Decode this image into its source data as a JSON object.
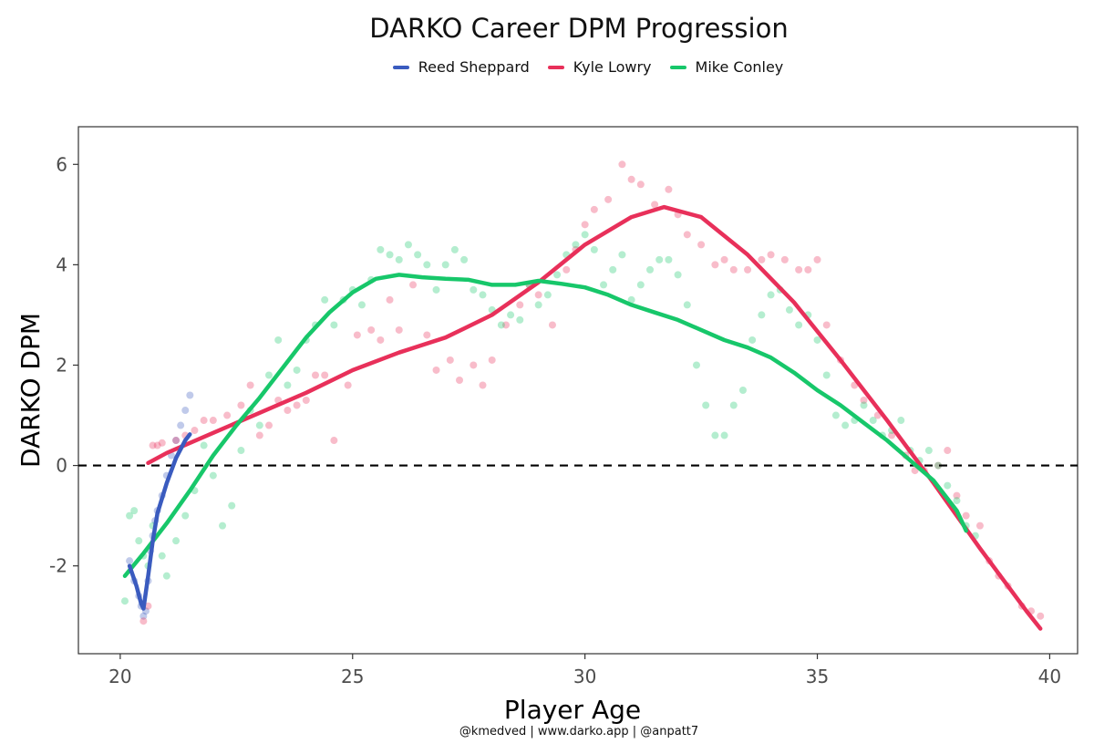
{
  "chart_data": {
    "type": "scatter",
    "title": "DARKO Career DPM Progression",
    "xlabel": "Player Age",
    "ylabel": "DARKO DPM",
    "xlim": [
      19.1,
      40.6
    ],
    "ylim": [
      -3.75,
      6.75
    ],
    "x_ticks": [
      20,
      25,
      30,
      35,
      40
    ],
    "y_ticks": [
      -2,
      0,
      2,
      4,
      6
    ],
    "y_tick_labels": [
      "-2",
      "0",
      "2",
      "4",
      "6"
    ],
    "reference_line": {
      "y": 0,
      "style": "dashed"
    },
    "grid": false,
    "legend_position": "top",
    "caption": "@kmedved | www.darko.app | @anpatt7",
    "series": [
      {
        "name": "Reed Sheppard",
        "color": "#3a5bbf",
        "points": [
          [
            20.2,
            -1.9
          ],
          [
            20.3,
            -2.3
          ],
          [
            20.4,
            -2.6
          ],
          [
            20.45,
            -2.8
          ],
          [
            20.5,
            -3.0
          ],
          [
            20.55,
            -2.9
          ],
          [
            20.6,
            -2.3
          ],
          [
            20.65,
            -1.7
          ],
          [
            20.7,
            -1.4
          ],
          [
            20.75,
            -1.1
          ],
          [
            20.8,
            -0.9
          ],
          [
            20.9,
            -0.6
          ],
          [
            21.0,
            -0.2
          ],
          [
            21.1,
            0.2
          ],
          [
            21.2,
            0.5
          ],
          [
            21.3,
            0.8
          ],
          [
            21.4,
            1.1
          ],
          [
            21.5,
            1.4
          ]
        ],
        "trend": [
          [
            20.2,
            -2.0
          ],
          [
            20.35,
            -2.4
          ],
          [
            20.45,
            -2.75
          ],
          [
            20.5,
            -2.85
          ],
          [
            20.6,
            -2.2
          ],
          [
            20.7,
            -1.5
          ],
          [
            20.8,
            -0.95
          ],
          [
            21.0,
            -0.35
          ],
          [
            21.2,
            0.15
          ],
          [
            21.4,
            0.5
          ],
          [
            21.5,
            0.62
          ]
        ]
      },
      {
        "name": "Kyle Lowry",
        "color": "#e8305a",
        "points": [
          [
            20.5,
            -3.1
          ],
          [
            20.6,
            -2.8
          ],
          [
            20.7,
            0.4
          ],
          [
            20.8,
            0.4
          ],
          [
            20.9,
            0.45
          ],
          [
            21.2,
            0.5
          ],
          [
            21.4,
            0.6
          ],
          [
            21.6,
            0.7
          ],
          [
            21.8,
            0.9
          ],
          [
            22.0,
            0.9
          ],
          [
            22.3,
            1.0
          ],
          [
            22.6,
            1.2
          ],
          [
            22.8,
            1.6
          ],
          [
            23.0,
            0.6
          ],
          [
            23.2,
            0.8
          ],
          [
            23.4,
            1.3
          ],
          [
            23.6,
            1.1
          ],
          [
            23.8,
            1.2
          ],
          [
            24.0,
            1.3
          ],
          [
            24.2,
            1.8
          ],
          [
            24.4,
            1.8
          ],
          [
            24.6,
            0.5
          ],
          [
            24.9,
            1.6
          ],
          [
            25.1,
            2.6
          ],
          [
            25.4,
            2.7
          ],
          [
            25.6,
            2.5
          ],
          [
            25.8,
            3.3
          ],
          [
            26.0,
            2.7
          ],
          [
            26.3,
            3.6
          ],
          [
            26.6,
            2.6
          ],
          [
            26.8,
            1.9
          ],
          [
            27.1,
            2.1
          ],
          [
            27.3,
            1.7
          ],
          [
            27.6,
            2.0
          ],
          [
            27.8,
            1.6
          ],
          [
            28.0,
            2.1
          ],
          [
            28.3,
            2.8
          ],
          [
            28.6,
            3.2
          ],
          [
            28.8,
            3.6
          ],
          [
            29.0,
            3.4
          ],
          [
            29.3,
            2.8
          ],
          [
            29.6,
            3.9
          ],
          [
            29.8,
            4.3
          ],
          [
            30.0,
            4.8
          ],
          [
            30.2,
            5.1
          ],
          [
            30.5,
            5.3
          ],
          [
            30.8,
            6.0
          ],
          [
            31.0,
            5.7
          ],
          [
            31.2,
            5.6
          ],
          [
            31.5,
            5.2
          ],
          [
            31.8,
            5.5
          ],
          [
            32.0,
            5.0
          ],
          [
            32.2,
            4.6
          ],
          [
            32.5,
            4.4
          ],
          [
            32.8,
            4.0
          ],
          [
            33.0,
            4.1
          ],
          [
            33.2,
            3.9
          ],
          [
            33.5,
            3.9
          ],
          [
            33.8,
            4.1
          ],
          [
            34.0,
            4.2
          ],
          [
            34.3,
            4.1
          ],
          [
            34.6,
            3.9
          ],
          [
            34.8,
            3.9
          ],
          [
            35.0,
            4.1
          ],
          [
            35.2,
            2.8
          ],
          [
            35.5,
            2.1
          ],
          [
            35.8,
            1.6
          ],
          [
            36.0,
            1.3
          ],
          [
            36.3,
            1.0
          ],
          [
            36.6,
            0.6
          ],
          [
            36.9,
            0.2
          ],
          [
            37.1,
            -0.1
          ],
          [
            37.3,
            -0.1
          ],
          [
            37.6,
            0.0
          ],
          [
            37.8,
            0.3
          ],
          [
            38.0,
            -0.6
          ],
          [
            38.2,
            -1.0
          ],
          [
            38.5,
            -1.2
          ],
          [
            38.7,
            -1.9
          ],
          [
            38.9,
            -2.2
          ],
          [
            39.1,
            -2.4
          ],
          [
            39.4,
            -2.8
          ],
          [
            39.6,
            -2.9
          ],
          [
            39.8,
            -3.0
          ]
        ],
        "trend": [
          [
            20.6,
            0.05
          ],
          [
            21.0,
            0.25
          ],
          [
            22.0,
            0.65
          ],
          [
            23.0,
            1.05
          ],
          [
            24.0,
            1.45
          ],
          [
            25.0,
            1.9
          ],
          [
            26.0,
            2.25
          ],
          [
            27.0,
            2.55
          ],
          [
            28.0,
            3.0
          ],
          [
            29.0,
            3.65
          ],
          [
            30.0,
            4.4
          ],
          [
            31.0,
            4.95
          ],
          [
            31.7,
            5.15
          ],
          [
            32.5,
            4.95
          ],
          [
            33.5,
            4.2
          ],
          [
            34.5,
            3.25
          ],
          [
            35.5,
            2.1
          ],
          [
            36.5,
            0.9
          ],
          [
            37.5,
            -0.35
          ],
          [
            38.5,
            -1.65
          ],
          [
            39.5,
            -2.9
          ],
          [
            39.8,
            -3.25
          ]
        ]
      },
      {
        "name": "Mike Conley",
        "color": "#17c76a",
        "points": [
          [
            20.1,
            -2.7
          ],
          [
            20.2,
            -1.0
          ],
          [
            20.3,
            -0.9
          ],
          [
            20.4,
            -1.5
          ],
          [
            20.5,
            -1.8
          ],
          [
            20.6,
            -2.0
          ],
          [
            20.7,
            -1.2
          ],
          [
            20.9,
            -1.8
          ],
          [
            21.0,
            -2.2
          ],
          [
            21.2,
            -1.5
          ],
          [
            21.4,
            -1.0
          ],
          [
            21.6,
            -0.5
          ],
          [
            21.8,
            0.4
          ],
          [
            22.0,
            -0.2
          ],
          [
            22.2,
            -1.2
          ],
          [
            22.4,
            -0.8
          ],
          [
            22.6,
            0.3
          ],
          [
            22.8,
            1.1
          ],
          [
            23.0,
            0.8
          ],
          [
            23.2,
            1.8
          ],
          [
            23.4,
            2.5
          ],
          [
            23.6,
            1.6
          ],
          [
            23.8,
            1.9
          ],
          [
            24.0,
            2.5
          ],
          [
            24.2,
            2.8
          ],
          [
            24.4,
            3.3
          ],
          [
            24.6,
            2.8
          ],
          [
            24.8,
            3.3
          ],
          [
            25.0,
            3.5
          ],
          [
            25.2,
            3.2
          ],
          [
            25.4,
            3.7
          ],
          [
            25.6,
            4.3
          ],
          [
            25.8,
            4.2
          ],
          [
            26.0,
            4.1
          ],
          [
            26.2,
            4.4
          ],
          [
            26.4,
            4.2
          ],
          [
            26.6,
            4.0
          ],
          [
            26.8,
            3.5
          ],
          [
            27.0,
            4.0
          ],
          [
            27.2,
            4.3
          ],
          [
            27.4,
            4.1
          ],
          [
            27.6,
            3.5
          ],
          [
            27.8,
            3.4
          ],
          [
            28.0,
            3.1
          ],
          [
            28.2,
            2.8
          ],
          [
            28.4,
            3.0
          ],
          [
            28.6,
            2.9
          ],
          [
            28.8,
            3.6
          ],
          [
            29.0,
            3.2
          ],
          [
            29.2,
            3.4
          ],
          [
            29.4,
            3.8
          ],
          [
            29.6,
            4.2
          ],
          [
            29.8,
            4.4
          ],
          [
            30.0,
            4.6
          ],
          [
            30.2,
            4.3
          ],
          [
            30.4,
            3.6
          ],
          [
            30.6,
            3.9
          ],
          [
            30.8,
            4.2
          ],
          [
            31.0,
            3.3
          ],
          [
            31.2,
            3.6
          ],
          [
            31.4,
            3.9
          ],
          [
            31.6,
            4.1
          ],
          [
            31.8,
            4.1
          ],
          [
            32.0,
            3.8
          ],
          [
            32.2,
            3.2
          ],
          [
            32.4,
            2.0
          ],
          [
            32.6,
            1.2
          ],
          [
            32.8,
            0.6
          ],
          [
            33.0,
            0.6
          ],
          [
            33.2,
            1.2
          ],
          [
            33.4,
            1.5
          ],
          [
            33.6,
            2.5
          ],
          [
            33.8,
            3.0
          ],
          [
            34.0,
            3.4
          ],
          [
            34.2,
            3.5
          ],
          [
            34.4,
            3.1
          ],
          [
            34.6,
            2.8
          ],
          [
            34.8,
            3.0
          ],
          [
            35.0,
            2.5
          ],
          [
            35.2,
            1.8
          ],
          [
            35.4,
            1.0
          ],
          [
            35.6,
            0.8
          ],
          [
            35.8,
            0.9
          ],
          [
            36.0,
            1.2
          ],
          [
            36.2,
            0.9
          ],
          [
            36.4,
            0.6
          ],
          [
            36.6,
            0.7
          ],
          [
            36.8,
            0.9
          ],
          [
            37.0,
            0.3
          ],
          [
            37.2,
            0.1
          ],
          [
            37.4,
            0.3
          ],
          [
            37.6,
            0.0
          ],
          [
            37.8,
            -0.4
          ],
          [
            38.0,
            -0.7
          ],
          [
            38.2,
            -1.2
          ],
          [
            38.4,
            -1.4
          ]
        ],
        "trend": [
          [
            20.1,
            -2.2
          ],
          [
            20.5,
            -1.75
          ],
          [
            21.0,
            -1.15
          ],
          [
            21.5,
            -0.5
          ],
          [
            22.0,
            0.2
          ],
          [
            22.5,
            0.8
          ],
          [
            23.0,
            1.35
          ],
          [
            23.5,
            1.95
          ],
          [
            24.0,
            2.55
          ],
          [
            24.5,
            3.05
          ],
          [
            25.0,
            3.45
          ],
          [
            25.5,
            3.72
          ],
          [
            26.0,
            3.8
          ],
          [
            26.5,
            3.75
          ],
          [
            27.0,
            3.72
          ],
          [
            27.5,
            3.7
          ],
          [
            28.0,
            3.6
          ],
          [
            28.5,
            3.6
          ],
          [
            29.0,
            3.68
          ],
          [
            29.5,
            3.62
          ],
          [
            30.0,
            3.55
          ],
          [
            30.5,
            3.4
          ],
          [
            31.0,
            3.2
          ],
          [
            31.5,
            3.05
          ],
          [
            32.0,
            2.9
          ],
          [
            32.5,
            2.7
          ],
          [
            33.0,
            2.5
          ],
          [
            33.5,
            2.35
          ],
          [
            34.0,
            2.15
          ],
          [
            34.5,
            1.85
          ],
          [
            35.0,
            1.5
          ],
          [
            35.5,
            1.2
          ],
          [
            36.0,
            0.85
          ],
          [
            36.5,
            0.5
          ],
          [
            37.0,
            0.1
          ],
          [
            37.5,
            -0.3
          ],
          [
            38.0,
            -0.9
          ],
          [
            38.2,
            -1.3
          ]
        ]
      }
    ]
  }
}
